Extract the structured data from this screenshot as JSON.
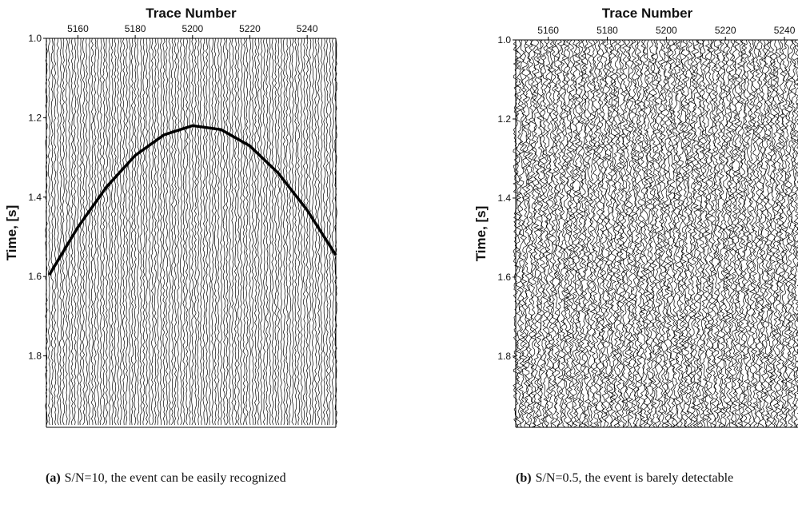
{
  "chart_data": [
    {
      "type": "wiggle",
      "title": "Trace Number",
      "ylabel": "Time, [s]",
      "xlim": [
        5149,
        5250
      ],
      "xticks": [
        5160,
        5180,
        5200,
        5220,
        5240
      ],
      "ylim": [
        1.0,
        1.98
      ],
      "yticks": [
        {
          "value": 1.0,
          "label": "1.0"
        },
        1.2,
        1.4,
        1.6,
        1.8
      ],
      "event": {
        "x": [
          5150,
          5160,
          5170,
          5180,
          5190,
          5200,
          5210,
          5220,
          5230,
          5240,
          5250
        ],
        "y": [
          1.596,
          1.476,
          1.374,
          1.295,
          1.243,
          1.22,
          1.23,
          1.271,
          1.34,
          1.433,
          1.546
        ]
      },
      "caption_label": "(a)",
      "caption": "S/N=10, the event can be easily recognized"
    },
    {
      "type": "wiggle",
      "title": "Trace Number",
      "ylabel": "Time, [s]",
      "xlim": [
        5149,
        5250
      ],
      "xticks": [
        5160,
        5180,
        5200,
        5220,
        5240
      ],
      "ylim": [
        1.0,
        1.98
      ],
      "yticks": [
        {
          "value": 1.0,
          "label": "1.0"
        },
        1.2,
        1.4,
        1.6,
        1.8
      ],
      "caption_label": "(b)",
      "caption": "S/N=0.5, the event is barely detectable"
    }
  ]
}
